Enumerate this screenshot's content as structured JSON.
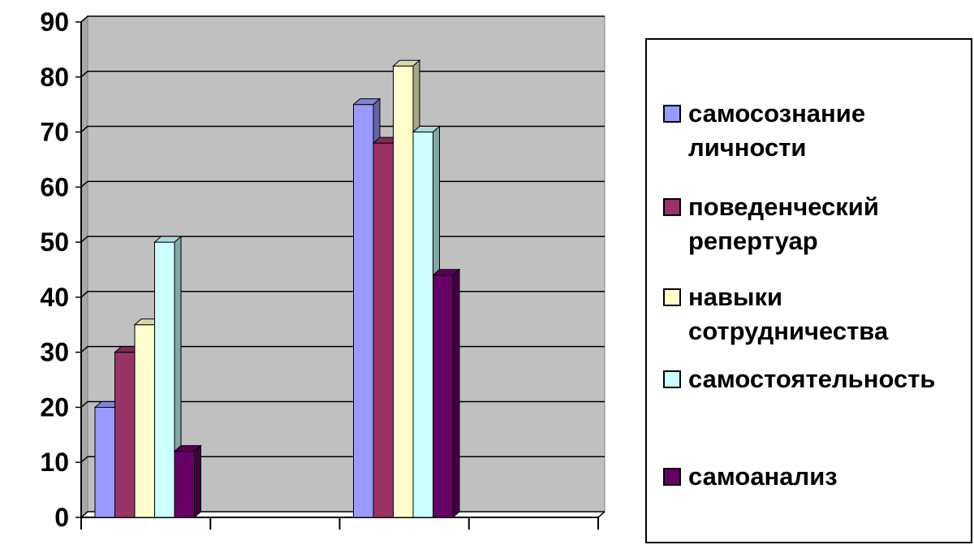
{
  "chart_data": {
    "type": "bar",
    "title": "",
    "xlabel": "",
    "ylabel": "",
    "categories": [
      "",
      "",
      "",
      ""
    ],
    "ylim": [
      0,
      90
    ],
    "yticks": [
      0,
      10,
      20,
      30,
      40,
      50,
      60,
      70,
      80,
      90
    ],
    "grid": true,
    "legend_position": "right",
    "series": [
      {
        "name": "самосознание личности",
        "color": "#9999ff",
        "values": [
          20,
          null,
          75,
          null
        ]
      },
      {
        "name": "поведенческий репертуар",
        "color": "#993366",
        "values": [
          30,
          null,
          68,
          null
        ]
      },
      {
        "name": "навыки сотрудничества",
        "color": "#ffffcc",
        "values": [
          35,
          null,
          82,
          null
        ]
      },
      {
        "name": "самостоятельность",
        "color": "#ccffff",
        "values": [
          50,
          null,
          70,
          null
        ]
      },
      {
        "name": "самоанализ",
        "color": "#660066",
        "values": [
          12,
          null,
          44,
          null
        ]
      }
    ]
  },
  "legend": {
    "items": [
      {
        "label": "самосознание\nличности"
      },
      {
        "label": "поведенческий\nрепертуар"
      },
      {
        "label": "навыки\nсотрудничества"
      },
      {
        "label": "самостоятельность"
      },
      {
        "label": "самоанализ"
      }
    ]
  }
}
